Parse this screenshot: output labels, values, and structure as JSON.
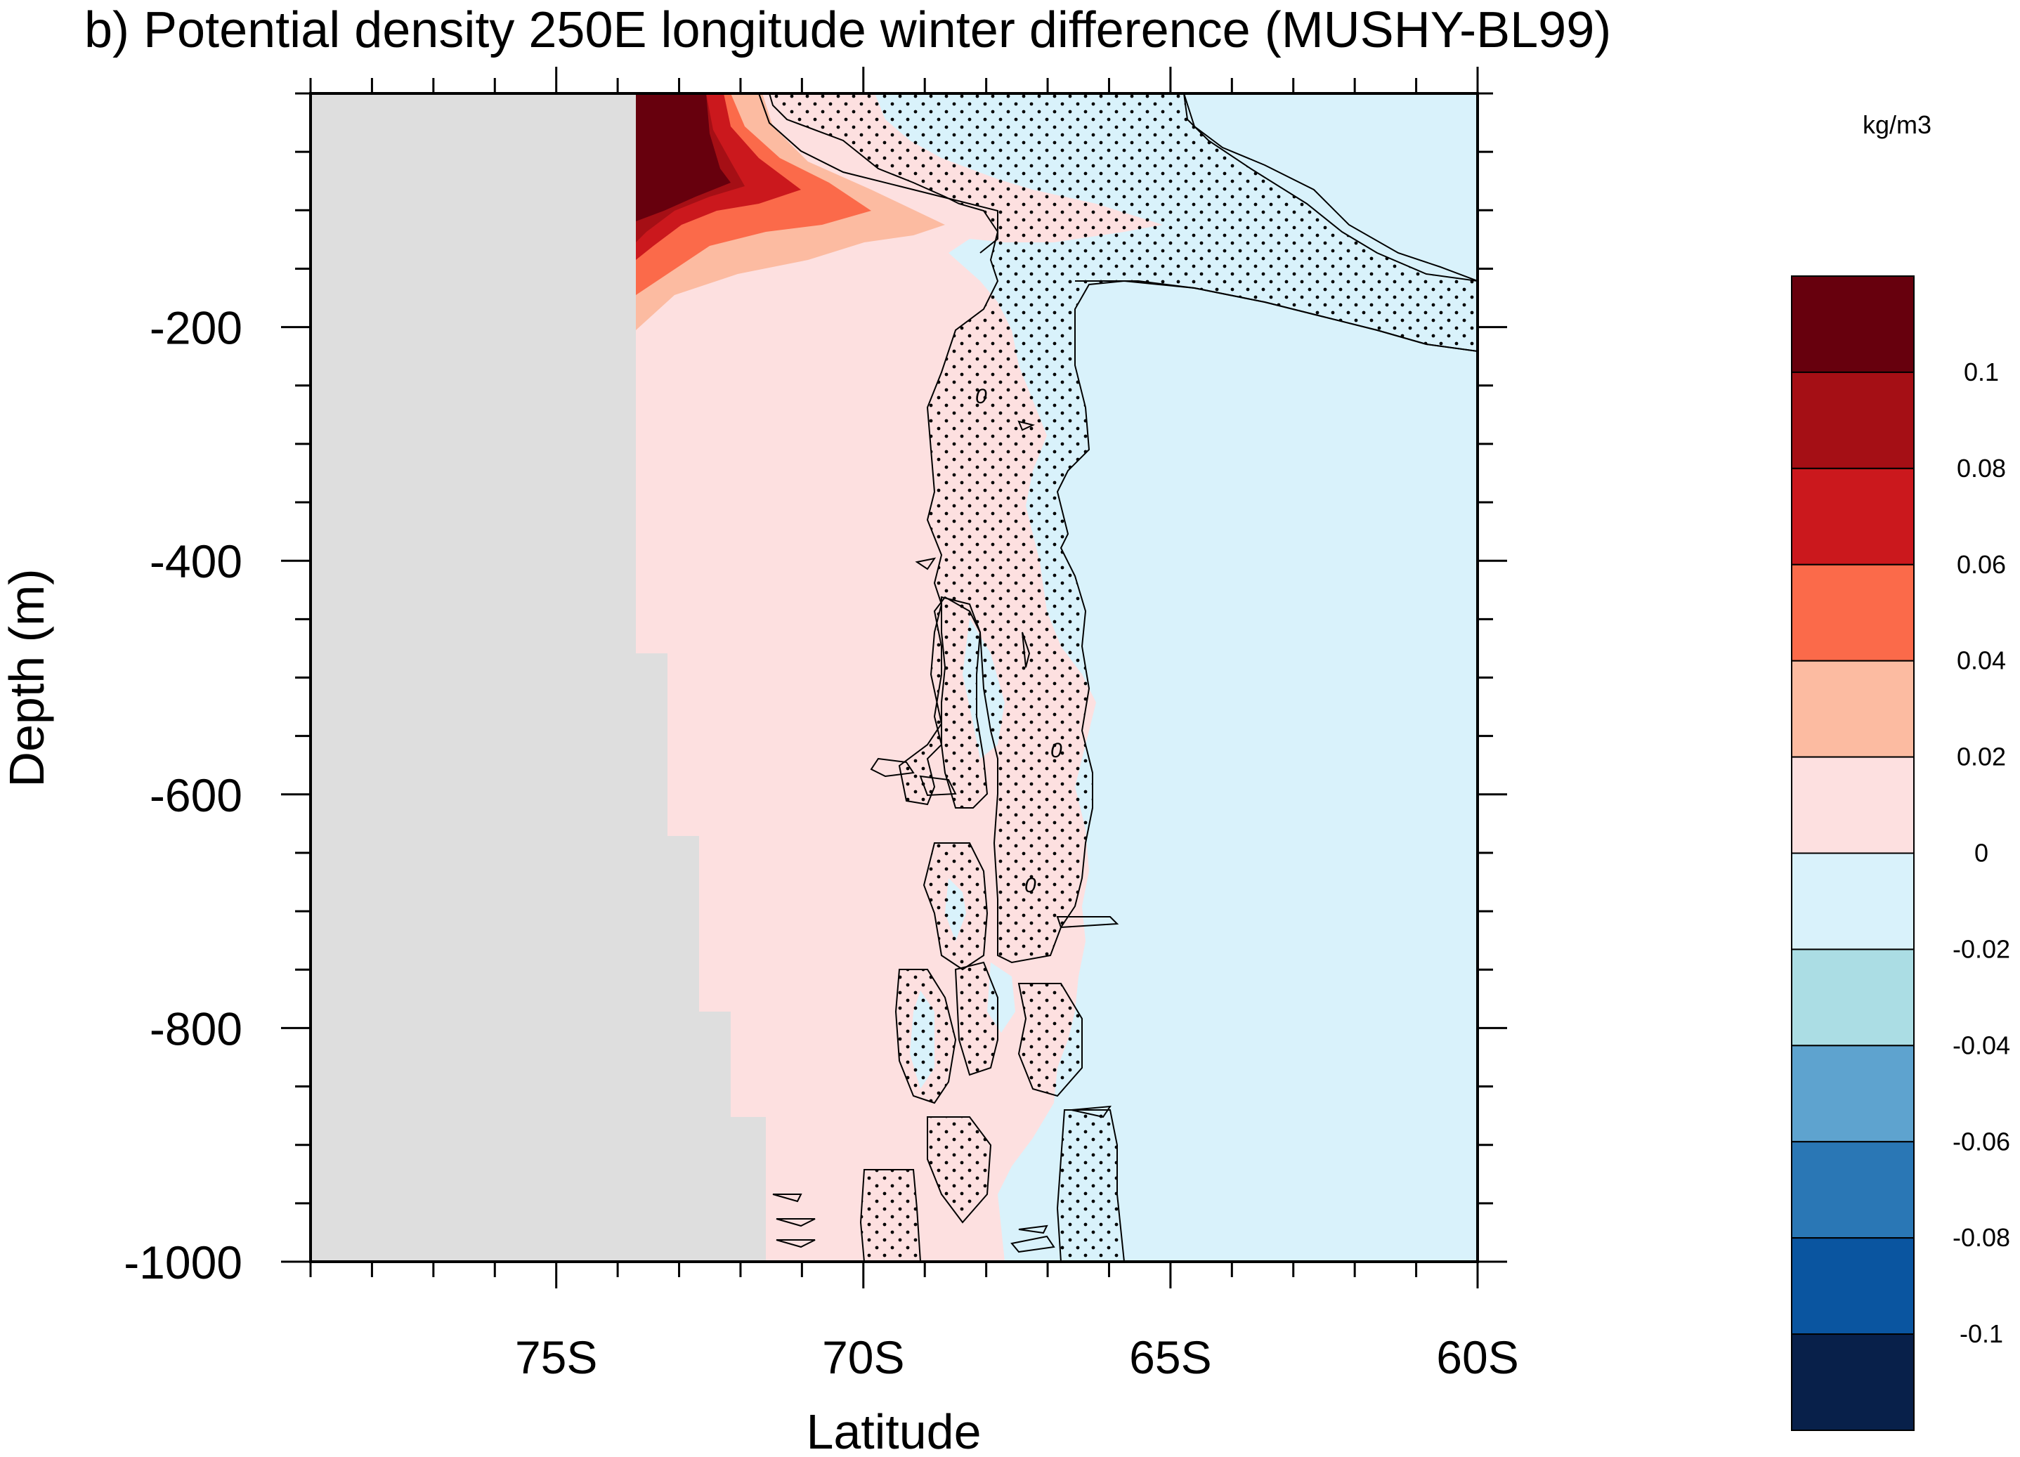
{
  "chart_data": {
    "type": "contour",
    "title": "b) Potential density 250E longitude winter difference (MUSHY-BL99)",
    "xlabel": "Latitude",
    "ylabel": "Depth (m)",
    "units": "kg/m3",
    "xlim": [
      -79,
      -60
    ],
    "ylim": [
      -1000,
      0
    ],
    "x_ticks": [
      {
        "value": -75,
        "label": "75S"
      },
      {
        "value": -70,
        "label": "70S"
      },
      {
        "value": -65,
        "label": "65S"
      },
      {
        "value": -60,
        "label": "60S"
      }
    ],
    "y_ticks": [
      {
        "value": -200,
        "label": "-200"
      },
      {
        "value": -400,
        "label": "-400"
      },
      {
        "value": -600,
        "label": "-600"
      },
      {
        "value": -800,
        "label": "-800"
      },
      {
        "value": -1000,
        "label": "-1000"
      }
    ],
    "colorbar": {
      "levels": [
        {
          "label": "0.1",
          "color": "#a50f15"
        },
        {
          "label": "0.08",
          "color": "#cb181d"
        },
        {
          "label": "0.06",
          "color": "#fb6a4a"
        },
        {
          "label": "0.04",
          "color": "#fcbba1"
        },
        {
          "label": "0.02",
          "color": "#fde0e0"
        },
        {
          "label": "0",
          "color": "#d9f2fb"
        },
        {
          "label": "-0.02",
          "color": "#abdde4"
        },
        {
          "label": "-0.04",
          "color": "#5ea3cf"
        },
        {
          "label": "-0.06",
          "color": "#2a77b5"
        },
        {
          "label": "-0.08",
          "color": "#0a55a0"
        },
        {
          "label": "-0.1",
          "color": "#08204a"
        }
      ],
      "top_color": "#67000d"
    },
    "contour_labels": [
      "0",
      "0",
      "0"
    ],
    "colors": {
      "land": "#dedede",
      "positive_small": "#fde0e0",
      "negative_small": "#d9f2fb"
    }
  }
}
